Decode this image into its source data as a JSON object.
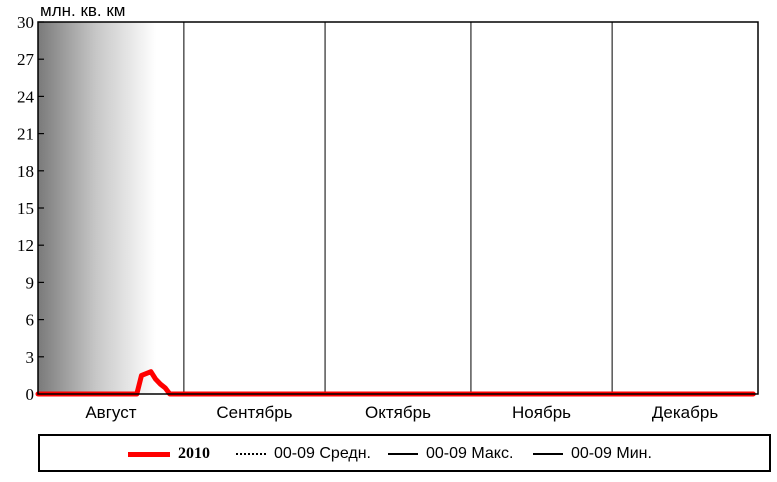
{
  "chart_data": {
    "type": "line",
    "unit_label": "млн. кв. км",
    "ylim": [
      0,
      30
    ],
    "yticks": [
      "0",
      "3",
      "6",
      "9",
      "12",
      "15",
      "18",
      "21",
      "24",
      "27",
      "30"
    ],
    "xlim": [
      0,
      153
    ],
    "months": [
      {
        "label": "Август",
        "start": 0
      },
      {
        "label": "Сентябрь",
        "start": 31
      },
      {
        "label": "Октябрь",
        "start": 61
      },
      {
        "label": "Ноябрь",
        "start": 92
      },
      {
        "label": "Декабрь",
        "start": 122
      }
    ],
    "series": [
      {
        "name": "2010",
        "color": "#ff0000",
        "style": "thick",
        "x": [
          0,
          5,
          10,
          15,
          18,
          19,
          20,
          21,
          22,
          24,
          25,
          26,
          27,
          28,
          29,
          30,
          31,
          32,
          33,
          34,
          35,
          36,
          37,
          38,
          39,
          40,
          41,
          42,
          43,
          44,
          45,
          46,
          47,
          48,
          49,
          50,
          51,
          52,
          53,
          54,
          55,
          56,
          57,
          58,
          60,
          62,
          64,
          66,
          68,
          70,
          72,
          74,
          76,
          78,
          80,
          82,
          84,
          86,
          88,
          90,
          92,
          94,
          96,
          98,
          100,
          102,
          104,
          106,
          108,
          110,
          112,
          114,
          116,
          118,
          120,
          122,
          124,
          126,
          128,
          130,
          132,
          134,
          136,
          138,
          140,
          141,
          142,
          143,
          144,
          145,
          146,
          147,
          148,
          149,
          150,
          151,
          152
        ],
        "y": [
          0,
          0,
          0,
          0,
          0,
          0,
          0,
          0,
          1.5,
          1.8,
          1.2,
          0.8,
          0.5,
          0,
          0,
          0,
          0,
          0,
          0,
          0,
          0,
          0,
          0,
          0,
          0,
          0,
          0,
          0,
          0,
          0,
          0,
          0,
          0,
          0,
          0,
          0,
          0,
          0,
          0,
          0,
          0,
          0,
          0,
          0,
          0,
          0,
          0,
          0,
          0,
          0,
          0,
          0,
          0,
          0,
          0,
          0,
          0,
          0,
          0,
          0,
          0,
          0,
          0,
          0,
          0,
          0,
          0,
          0,
          0,
          0,
          0,
          0,
          0,
          0,
          0,
          0,
          0,
          0,
          0,
          0,
          0,
          0,
          0,
          0,
          0,
          0,
          0,
          0,
          0,
          0,
          0,
          0,
          0,
          0,
          0,
          0,
          0
        ]
      }
    ]
  },
  "legend": [
    {
      "label": "2010",
      "style": "thick-red"
    },
    {
      "label": "00-09 Средн.",
      "style": "dotted"
    },
    {
      "label": "00-09 Макс.",
      "style": "solid"
    },
    {
      "label": "00-09 Мин.",
      "style": "solid"
    }
  ]
}
